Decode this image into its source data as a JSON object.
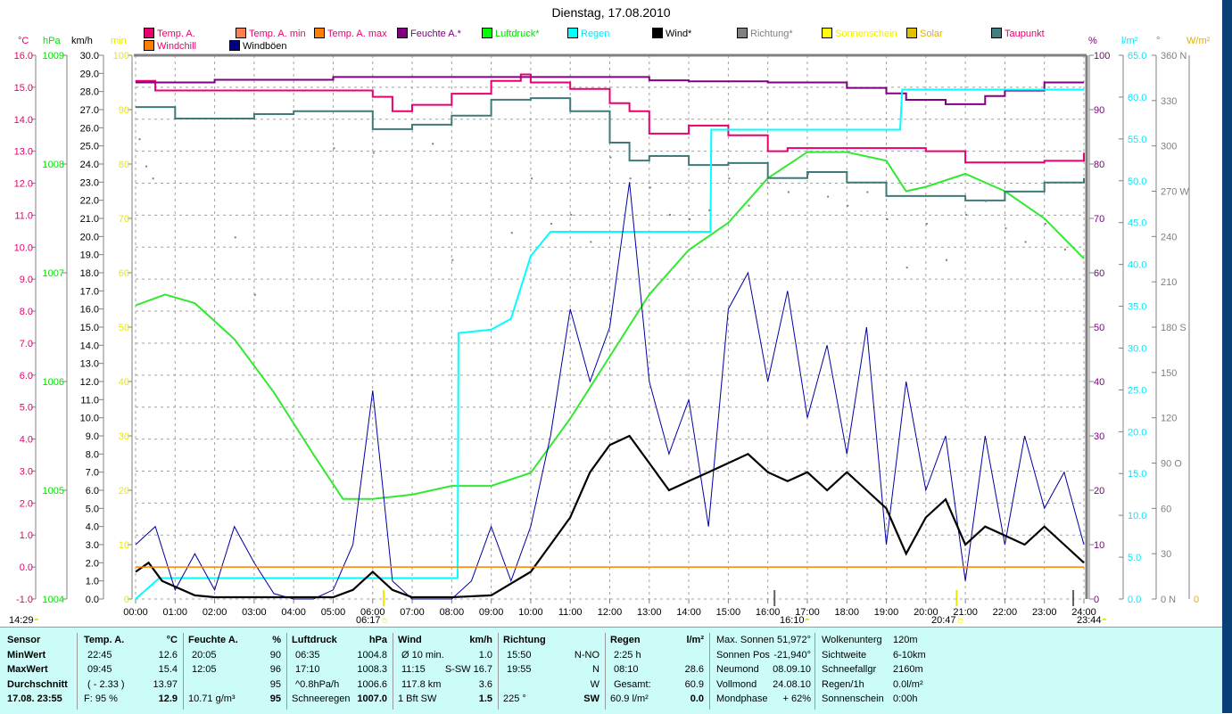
{
  "title": "Dienstag, 17.08.2010",
  "legend": [
    {
      "label": "Temp. A.",
      "color": "#e8006f",
      "text_color": "#e8006f"
    },
    {
      "label": "Temp. A. min",
      "color": "#ff7f50",
      "text_color": "#e8006f"
    },
    {
      "label": "Temp. A. max",
      "color": "#ff8000",
      "text_color": "#e8006f"
    },
    {
      "label": "Feuchte A.*",
      "color": "#800080",
      "text_color": "#800080"
    },
    {
      "label": "Luftdruck*",
      "color": "#00ff00",
      "text_color": "#00e000"
    },
    {
      "label": "Regen",
      "color": "#00ffff",
      "text_color": "#00e8ff"
    },
    {
      "label": "Wind*",
      "color": "#000000",
      "text_color": "#000000"
    },
    {
      "label": "Richtung*",
      "color": "#808080",
      "text_color": "#808080"
    },
    {
      "label": "Sonnenschein",
      "color": "#ffff00",
      "text_color": "#f0f000"
    },
    {
      "label": "Solar",
      "color": "#e0c000",
      "text_color": "#e0b000"
    },
    {
      "label": "Taupunkt",
      "color": "#408080",
      "text_color": "#e8006f"
    },
    {
      "label": "Windchill",
      "color": "#ff8000",
      "text_color": "#e8006f"
    },
    {
      "label": "Windböen",
      "color": "#000080",
      "text_color": "#000000"
    }
  ],
  "colors": {
    "temp": "#e8006f",
    "hum": "#800080",
    "press": "#33e833",
    "rain": "#00ffff",
    "wind": "#000000",
    "gust": "#0000a0",
    "dir": "#808080",
    "dew": "#3f7a78",
    "chill": "#ff8000",
    "grid": "#a0a0a0"
  },
  "chart_data": {
    "type": "line",
    "title": "Dienstag, 17.08.2010",
    "x_unit": "hour",
    "x_ticks": [
      "00:00",
      "01:00",
      "02:00",
      "03:00",
      "04:00",
      "05:00",
      "06:00",
      "07:00",
      "08:00",
      "09:00",
      "10:00",
      "11:00",
      "12:00",
      "13:00",
      "14:00",
      "15:00",
      "16:00",
      "17:00",
      "18:00",
      "19:00",
      "20:00",
      "21:00",
      "22:00",
      "23:00",
      "24:00"
    ],
    "axes": {
      "temp": {
        "unit": "°C",
        "range": [
          -1,
          16
        ],
        "step": 1,
        "color": "#e8006f"
      },
      "press": {
        "unit": "hPa",
        "range": [
          1004,
          1009
        ],
        "step": 1,
        "color": "#00e000"
      },
      "wind": {
        "unit": "km/h",
        "range": [
          0,
          30
        ],
        "step": 1,
        "color": "#000000"
      },
      "min": {
        "unit": "min",
        "range": [
          0,
          100
        ],
        "step": 10,
        "color": "#e8e800"
      },
      "hum": {
        "unit": "%",
        "range": [
          0,
          100
        ],
        "step": 10,
        "color": "#800080"
      },
      "rain": {
        "unit": "l/m²",
        "range": [
          0,
          65
        ],
        "step": 5,
        "color": "#00e8ff"
      },
      "dir": {
        "unit": "°",
        "range": [
          0,
          360
        ],
        "step": 30,
        "color": "#808080",
        "labels": {
          "0": "N",
          "90": "O",
          "180": "S",
          "270": "W",
          "360": "N"
        }
      },
      "solar": {
        "unit": "W/m²",
        "range": [
          0,
          0
        ],
        "color": "#e0b000"
      }
    },
    "series": [
      {
        "name": "Temp. A.",
        "axis": "temp",
        "x": [
          0,
          0.5,
          1,
          2,
          3,
          4,
          5,
          6,
          6.5,
          7,
          8,
          9,
          9.75,
          10,
          11,
          12,
          12.5,
          13,
          14,
          15,
          16,
          16.5,
          17,
          18,
          19,
          20,
          21,
          22,
          23,
          24
        ],
        "y": [
          15.2,
          14.9,
          14.9,
          14.9,
          14.9,
          14.9,
          14.9,
          14.7,
          14.25,
          14.45,
          14.8,
          15.2,
          15.4,
          15.15,
          14.95,
          14.5,
          14.25,
          13.55,
          13.8,
          13.5,
          13.0,
          13.1,
          13.1,
          13.1,
          13.1,
          13.0,
          12.65,
          12.65,
          12.7,
          12.95
        ]
      },
      {
        "name": "Feuchte A.*",
        "axis": "hum",
        "x": [
          0,
          2,
          5,
          9,
          12,
          13,
          14,
          16,
          17,
          18,
          19,
          19.5,
          20.5,
          21.5,
          22,
          23,
          24
        ],
        "y": [
          95,
          95.5,
          96,
          96,
          96,
          95.4,
          95.2,
          95,
          95,
          94,
          93,
          91.8,
          91,
          92.5,
          93.5,
          95,
          95
        ]
      },
      {
        "name": "Luftdruck*",
        "axis": "press",
        "x": [
          0,
          0.75,
          1.5,
          2.5,
          3.5,
          4.5,
          5.25,
          6,
          7,
          8,
          9,
          10,
          11,
          12,
          13,
          14,
          15,
          16,
          17,
          18,
          19,
          19.5,
          20,
          21,
          22,
          23,
          24
        ],
        "y": [
          1006.7,
          1006.8,
          1006.72,
          1006.39,
          1005.9,
          1005.33,
          1004.92,
          1004.92,
          1004.96,
          1005.04,
          1005.04,
          1005.16,
          1005.66,
          1006.23,
          1006.8,
          1007.21,
          1007.46,
          1007.87,
          1008.11,
          1008.11,
          1008.03,
          1007.75,
          1007.79,
          1007.91,
          1007.75,
          1007.5,
          1007.13
        ]
      },
      {
        "name": "Taupunkt",
        "axis": "temp",
        "x": [
          0,
          1,
          3,
          4,
          6,
          7,
          8,
          9,
          10,
          11,
          12,
          12.5,
          13,
          14,
          15,
          16,
          17,
          18,
          19,
          20,
          21,
          22,
          23,
          24
        ],
        "y": [
          14.38,
          14.02,
          14.16,
          14.25,
          13.69,
          13.83,
          14.11,
          14.61,
          14.66,
          14.25,
          13.27,
          12.71,
          12.85,
          12.57,
          12.63,
          12.16,
          12.35,
          12.02,
          11.6,
          11.6,
          11.46,
          11.74,
          12.02,
          12.16
        ]
      },
      {
        "name": "Regen",
        "axis": "rain",
        "x": [
          0,
          0.6,
          8.15,
          8.17,
          9,
          9.5,
          10,
          10.5,
          14.55,
          14.57,
          19.35,
          19.4,
          24
        ],
        "y": [
          0,
          2.5,
          2.5,
          31.8,
          32.2,
          33.5,
          41,
          43.9,
          43.9,
          56.1,
          56.1,
          60.9,
          60.9
        ]
      },
      {
        "name": "Windböen",
        "axis": "wind",
        "x": [
          0,
          0.5,
          1,
          1.5,
          2,
          2.5,
          3,
          3.5,
          4,
          4.5,
          5,
          5.5,
          6,
          6.5,
          7,
          7.5,
          8,
          8.5,
          9,
          9.5,
          10,
          10.5,
          11,
          11.5,
          12,
          12.5,
          13,
          13.5,
          14,
          14.5,
          15,
          15.5,
          16,
          16.5,
          17,
          17.5,
          18,
          18.5,
          19,
          19.5,
          20,
          20.5,
          21,
          21.5,
          22,
          22.5,
          23,
          23.5,
          24
        ],
        "y": [
          3,
          4,
          0.5,
          2.5,
          0.5,
          4,
          2,
          0.3,
          0,
          0,
          0.5,
          3,
          11.5,
          1,
          0,
          0,
          0,
          1,
          4,
          1,
          4,
          9,
          16,
          12,
          15,
          23,
          12,
          8,
          11,
          4,
          16,
          18,
          12,
          17,
          10,
          14,
          8,
          15,
          3,
          12,
          6,
          9,
          1,
          9,
          3,
          9,
          5,
          7,
          3
        ]
      },
      {
        "name": "Wind*",
        "axis": "wind",
        "x": [
          0,
          0.33,
          0.67,
          1.5,
          2,
          3,
          4,
          5,
          5.5,
          6,
          6.5,
          7,
          8,
          9,
          10,
          10.5,
          11,
          11.5,
          12,
          12.5,
          13,
          13.5,
          14,
          14.5,
          15,
          15.5,
          16,
          16.5,
          17,
          17.5,
          18,
          18.5,
          19,
          19.5,
          20,
          20.5,
          21,
          21.5,
          22,
          22.5,
          23,
          23.5,
          24
        ],
        "y": [
          1.5,
          2,
          1,
          0.2,
          0.1,
          0.1,
          0.1,
          0.1,
          0.5,
          1.5,
          0.5,
          0.1,
          0.1,
          0.2,
          1.5,
          3,
          4.5,
          7,
          8.5,
          9,
          7.5,
          6,
          6.5,
          7,
          7.5,
          8,
          7,
          6.5,
          7,
          6,
          7,
          6,
          5,
          2.5,
          4.5,
          5.5,
          3,
          4,
          3.5,
          3,
          4,
          3,
          2
        ]
      },
      {
        "name": "Windchill",
        "axis": "temp",
        "x": [
          0,
          24
        ],
        "y": [
          0,
          0
        ]
      }
    ],
    "direction_points": {
      "x": [
        0.08,
        0.25,
        0.42,
        2.5,
        3,
        5,
        6,
        7.5,
        8,
        9.5,
        10,
        10.5,
        11,
        11.5,
        12,
        12.5,
        13,
        13.5,
        14,
        14.5,
        15,
        15.5,
        16,
        16.5,
        17,
        17.5,
        18,
        18.5,
        19,
        19.5,
        20,
        20.5,
        21,
        21.5,
        22,
        22.5,
        23,
        23.5
      ],
      "y": [
        305,
        287,
        279,
        240,
        202,
        299,
        296,
        302,
        225,
        243,
        279,
        249,
        255,
        237,
        293,
        279,
        273,
        255,
        252,
        258,
        279,
        261,
        276,
        270,
        282,
        267,
        261,
        270,
        252,
        220,
        249,
        225,
        255,
        264,
        246,
        237,
        249,
        232
      ]
    },
    "markers": [
      {
        "label": "14:29",
        "hour": null,
        "icon": "moon-icon"
      },
      {
        "label": "06:17",
        "hour": 6.28,
        "icon": "sunrise-icon"
      },
      {
        "label": "16:10",
        "hour": 16.17,
        "icon": "moonrise-icon"
      },
      {
        "label": "20:47",
        "hour": 20.78,
        "icon": "sunset-icon"
      },
      {
        "label": "23:44",
        "hour": 23.73,
        "icon": "moonset-icon"
      }
    ]
  },
  "table": {
    "sensor": {
      "header": "Sensor",
      "rows": [
        "MinWert",
        "MaxWert",
        "Durchschnitt",
        "17.08. 23:55"
      ]
    },
    "temp": {
      "header": "Temp. A.",
      "unit": "°C",
      "rows": [
        [
          "22:45",
          "12.6"
        ],
        [
          "09:45",
          "15.4"
        ],
        [
          "( - 2.33 )",
          "13.97"
        ],
        [
          "F: 95 %",
          "12.9"
        ]
      ]
    },
    "hum": {
      "header": "Feuchte A.",
      "unit": "%",
      "rows": [
        [
          "20:05",
          "90"
        ],
        [
          "12:05",
          "96"
        ],
        [
          "",
          "95"
        ],
        [
          "10.71 g/m³",
          "95"
        ]
      ]
    },
    "press": {
      "header": "Luftdruck",
      "unit": "hPa",
      "rows": [
        [
          "06:35",
          "1004.8"
        ],
        [
          "17:10",
          "1008.3"
        ],
        [
          "^0.8hPa/h",
          "1006.6"
        ],
        [
          "Schneeregen",
          "1007.0"
        ]
      ]
    },
    "wind": {
      "header": "Wind",
      "unit": "km/h",
      "rows": [
        [
          "Ø 10 min.",
          "1.0"
        ],
        [
          "11:15",
          "S-SW 16.7"
        ],
        [
          "117.8 km",
          "3.6"
        ],
        [
          "1 Bft SW",
          "1.5"
        ]
      ]
    },
    "dir": {
      "header": "Richtung",
      "unit": "",
      "rows": [
        [
          "15:50",
          "N-NO"
        ],
        [
          "19:55",
          "N"
        ],
        [
          "",
          "W"
        ],
        [
          "225 °",
          "SW"
        ]
      ]
    },
    "rain": {
      "header": "Regen",
      "unit": "l/m²",
      "rows": [
        [
          "2:25 h",
          ""
        ],
        [
          "08:10",
          "28.6"
        ],
        [
          "Gesamt:",
          "60.9"
        ],
        [
          "60.9 l/m²",
          "0.0"
        ]
      ]
    },
    "sun": {
      "rows": [
        [
          "Max. Sonnen",
          "51,972°"
        ],
        [
          "Sonnen Pos",
          "-21,940°"
        ],
        [
          "Neumond",
          "08.09.10"
        ],
        [
          "Vollmond",
          "24.08.10"
        ],
        [
          "Mondphase",
          "+ 62%"
        ]
      ]
    },
    "misc": {
      "rows": [
        [
          "Wolkenunterg",
          "120m"
        ],
        [
          "Sichtweite",
          "6-10km"
        ],
        [
          "Schneefallgr",
          "2160m"
        ],
        [
          "Regen/1h",
          "0.0l/m²"
        ],
        [
          "Sonnenschein",
          "0:00h"
        ]
      ]
    }
  }
}
